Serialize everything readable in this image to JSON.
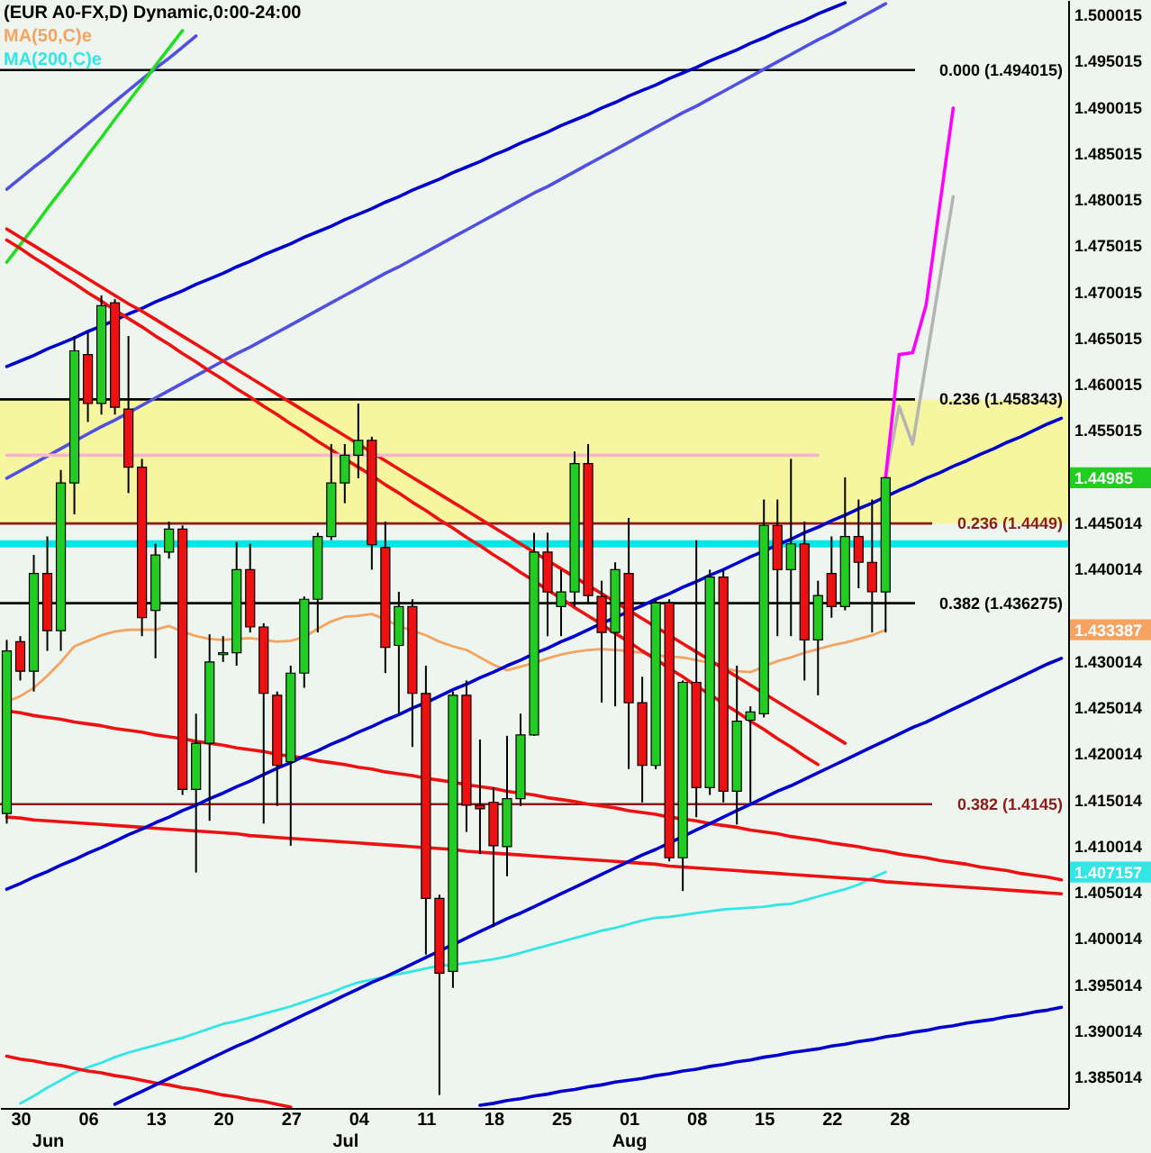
{
  "chart_data": {
    "type": "candlestick",
    "title": "(EUR A0-FX,D) Dynamic,0:00-24:00",
    "legend": "top left",
    "categories": [
      null,
      "30",
      null,
      "\nJun",
      null,
      null,
      "06",
      null,
      null,
      null,
      null,
      "13",
      null,
      null,
      null,
      null,
      "20",
      null,
      null,
      null,
      null,
      "27",
      null,
      null,
      null,
      "\nJul",
      "04",
      null,
      null,
      null,
      null,
      "11",
      null,
      null,
      null,
      null,
      "18",
      null,
      null,
      null,
      null,
      "25",
      null,
      null,
      null,
      null,
      "01\nAug",
      null,
      null,
      null,
      null,
      "08",
      null,
      null,
      null,
      null,
      "15",
      null,
      null,
      null,
      null,
      "22",
      null,
      null,
      null,
      null,
      "28",
      null,
      null,
      null,
      null,
      null,
      null,
      null,
      null,
      null,
      null,
      null,
      null
    ],
    "ohlc": [
      [
        1.4135,
        1.4323,
        1.4124,
        1.4311
      ],
      [
        1.4321,
        1.4327,
        1.4279,
        1.4289
      ],
      [
        1.4289,
        1.4415,
        1.4267,
        1.4395
      ],
      [
        1.4395,
        1.4435,
        1.4311,
        1.4333
      ],
      [
        1.4333,
        1.4507,
        1.4311,
        1.4493
      ],
      [
        1.4493,
        1.4652,
        1.4459,
        1.4636
      ],
      [
        1.4632,
        1.4656,
        1.4559,
        1.4579
      ],
      [
        1.4579,
        1.4696,
        1.4567,
        1.4685
      ],
      [
        1.4688,
        1.4692,
        1.4567,
        1.4575
      ],
      [
        1.4573,
        1.4652,
        1.4482,
        1.451
      ],
      [
        1.451,
        1.4519,
        1.4327,
        1.4347
      ],
      [
        1.4355,
        1.4427,
        1.4303,
        1.4415
      ],
      [
        1.4418,
        1.4451,
        1.4411,
        1.4443
      ],
      [
        1.4443,
        1.4447,
        1.4155,
        1.4161
      ],
      [
        1.4161,
        1.4243,
        1.4071,
        1.4211
      ],
      [
        1.4211,
        1.4329,
        1.4127,
        1.4299
      ],
      [
        1.4307,
        1.4327,
        1.4299,
        1.4309
      ],
      [
        1.4309,
        1.4429,
        1.4295,
        1.4399
      ],
      [
        1.4399,
        1.4427,
        1.4331,
        1.4337
      ],
      [
        1.4337,
        1.4341,
        1.4124,
        1.4265
      ],
      [
        1.4263,
        1.4267,
        1.4143,
        1.4187
      ],
      [
        1.4191,
        1.4295,
        1.41,
        1.4287
      ],
      [
        1.4287,
        1.437,
        1.4271,
        1.4367
      ],
      [
        1.4367,
        1.4439,
        1.4331,
        1.4435
      ],
      [
        1.4435,
        1.4535,
        1.4431,
        1.4493
      ],
      [
        1.4493,
        1.4535,
        1.4471,
        1.4523
      ],
      [
        1.4523,
        1.4579,
        1.4498,
        1.4539
      ],
      [
        1.4539,
        1.4543,
        1.4399,
        1.4426
      ],
      [
        1.4423,
        1.4451,
        1.4287,
        1.4315
      ],
      [
        1.4317,
        1.4375,
        1.4243,
        1.4359
      ],
      [
        1.4359,
        1.4367,
        1.4207,
        1.4265
      ],
      [
        1.4265,
        1.4295,
        1.3982,
        1.4043
      ],
      [
        1.4043,
        1.4047,
        1.383,
        1.3962
      ],
      [
        1.3964,
        1.4267,
        1.3946,
        1.4263
      ],
      [
        1.4263,
        1.4279,
        1.4115,
        1.4144
      ],
      [
        1.4144,
        1.4215,
        1.4091,
        1.414
      ],
      [
        1.4147,
        1.4163,
        1.4012,
        1.41
      ],
      [
        1.4099,
        1.4219,
        1.4067,
        1.4151
      ],
      [
        1.4151,
        1.4243,
        1.4143,
        1.422
      ],
      [
        1.422,
        1.4439,
        1.4219,
        1.4418
      ],
      [
        1.4418,
        1.4439,
        1.4327,
        1.4375
      ],
      [
        1.4359,
        1.4399,
        1.4327,
        1.4375
      ],
      [
        1.4375,
        1.4527,
        1.4359,
        1.4514
      ],
      [
        1.4514,
        1.4535,
        1.4363,
        1.4371
      ],
      [
        1.437,
        1.4387,
        1.4255,
        1.4331
      ],
      [
        1.4331,
        1.4407,
        1.4251,
        1.4399
      ],
      [
        1.4395,
        1.4455,
        1.4183,
        1.4255
      ],
      [
        1.4255,
        1.4283,
        1.4147,
        1.4187
      ],
      [
        1.4187,
        1.4367,
        1.4183,
        1.4363
      ],
      [
        1.4363,
        1.4367,
        1.4083,
        1.4087
      ],
      [
        1.4087,
        1.4279,
        1.4051,
        1.4277
      ],
      [
        1.4277,
        1.4431,
        1.4131,
        1.4163
      ],
      [
        1.4163,
        1.4399,
        1.4155,
        1.4391
      ],
      [
        1.4391,
        1.4399,
        1.4147,
        1.4159
      ],
      [
        1.4159,
        1.4295,
        1.4123,
        1.4235
      ],
      [
        1.4236,
        1.4251,
        1.4147,
        1.4245
      ],
      [
        1.4243,
        1.4475,
        1.4239,
        1.4447
      ],
      [
        1.4447,
        1.4475,
        1.4327,
        1.4399
      ],
      [
        1.4399,
        1.4519,
        1.4327,
        1.4427
      ],
      [
        1.4427,
        1.4451,
        1.4279,
        1.4323
      ],
      [
        1.4323,
        1.4387,
        1.4263,
        1.4371
      ],
      [
        1.4395,
        1.4435,
        1.4347,
        1.4359
      ],
      [
        1.4359,
        1.4499,
        1.4355,
        1.4435
      ],
      [
        1.4435,
        1.4475,
        1.4379,
        1.4407
      ],
      [
        1.4407,
        1.4475,
        1.4331,
        1.4375
      ],
      [
        1.4375,
        1.4499,
        1.4331,
        1.44985
      ],
      null,
      null,
      null,
      null,
      null,
      null,
      null,
      null,
      null,
      null,
      null,
      null,
      null
    ],
    "colors": [
      "#22cc22",
      "#ee1111",
      "#22cc22",
      "#ee1111",
      "#22cc22",
      "#22cc22",
      "#ee1111",
      "#22cc22",
      "#ee1111",
      "#ee1111",
      "#ee1111",
      "#22cc22",
      "#22cc22",
      "#ee1111",
      "#22cc22",
      "#22cc22",
      "#22cc22",
      "#22cc22",
      "#ee1111",
      "#ee1111",
      "#ee1111",
      "#22cc22",
      "#22cc22",
      "#22cc22",
      "#22cc22",
      "#22cc22",
      "#22cc22",
      "#ee1111",
      "#ee1111",
      "#22cc22",
      "#ee1111",
      "#ee1111",
      "#ee1111",
      "#22cc22",
      "#ee1111",
      "#ee1111",
      "#ee1111",
      "#22cc22",
      "#22cc22",
      "#22cc22",
      "#ee1111",
      "#22cc22",
      "#22cc22",
      "#ee1111",
      "#ee1111",
      "#22cc22",
      "#ee1111",
      "#ee1111",
      "#22cc22",
      "#ee1111",
      "#22cc22",
      "#ee1111",
      "#22cc22",
      "#ee1111",
      "#22cc22",
      "#22cc22",
      "#22cc22",
      "#ee1111",
      "#22cc22",
      "#ee1111",
      "#22cc22",
      "#ee1111",
      "#22cc22",
      "#ee1111",
      "#ee1111",
      "#22cc22",
      null,
      null,
      null,
      null,
      null,
      null,
      null,
      null,
      null,
      null,
      null,
      null,
      null
    ],
    "series": [
      {
        "type": "line",
        "name": "MA(50,C)e",
        "color": "#f4a460",
        "values": [
          1.4256,
          1.4262,
          1.4271,
          1.4284,
          1.4299,
          1.4316,
          1.4322,
          1.4328,
          1.4332,
          1.4334,
          1.4334,
          1.4334,
          1.4338,
          1.4332,
          1.4327,
          1.4324,
          1.4323,
          1.4324,
          1.4325,
          1.4323,
          1.4321,
          1.4322,
          1.4326,
          1.4335,
          1.4343,
          1.4348,
          1.4349,
          1.4351,
          1.4345,
          1.4338,
          1.4333,
          1.4328,
          1.4321,
          1.4316,
          1.4312,
          1.4304,
          1.4296,
          1.429,
          1.4294,
          1.4298,
          1.4303,
          1.4307,
          1.431,
          1.4312,
          1.4313,
          1.4312,
          1.4311,
          1.4309,
          1.4306,
          1.4305,
          1.4304,
          1.4301,
          1.4298,
          1.4293,
          1.4289,
          1.4288,
          1.4294,
          1.43,
          1.4304,
          1.4309,
          1.4313,
          1.4317,
          1.432,
          1.4324,
          1.4328,
          1.433387,
          null,
          null,
          null,
          null,
          null,
          null,
          null,
          null,
          null,
          null,
          null,
          null,
          null
        ]
      },
      {
        "type": "line",
        "name": "MA(200,C)e",
        "color": "#33e6e6",
        "values": [
          null,
          1.3821,
          1.3829,
          1.3838,
          1.3846,
          1.3854,
          1.386,
          1.3865,
          1.3871,
          1.3876,
          1.388,
          1.3884,
          1.3888,
          1.3892,
          1.3897,
          1.3902,
          1.3907,
          1.391,
          1.3914,
          1.3918,
          1.3922,
          1.3926,
          1.3931,
          1.3936,
          1.3941,
          1.3947,
          1.3952,
          1.3955,
          1.3958,
          1.3961,
          1.3964,
          1.3967,
          1.397,
          1.3971,
          1.3973,
          1.3975,
          1.3977,
          1.398,
          1.3984,
          1.3988,
          1.3992,
          1.3996,
          1.4,
          1.4004,
          1.4008,
          1.4011,
          1.4015,
          1.4019,
          1.4022,
          1.4023,
          1.4025,
          1.4027,
          1.4029,
          1.4031,
          1.4032,
          1.4033,
          1.4034,
          1.4036,
          1.4037,
          1.4041,
          1.4045,
          1.4049,
          1.4053,
          1.4058,
          1.4065,
          1.407157,
          null,
          null,
          null,
          null,
          null,
          null,
          null,
          null,
          null,
          null,
          null,
          null,
          null
        ]
      },
      {
        "type": "line",
        "color": "#0000cc",
        "values": [
          1.4619,
          1.4625,
          1.4631,
          1.4638,
          1.4644,
          1.465,
          1.4657,
          1.4663,
          1.4669,
          1.4676,
          1.4682,
          1.4689,
          1.4695,
          1.4701,
          1.4708,
          1.4714,
          1.472,
          1.4727,
          1.4733,
          1.474,
          1.4746,
          1.4752,
          1.4759,
          1.4765,
          1.4771,
          1.4778,
          1.4784,
          1.479,
          1.4797,
          1.4803,
          1.481,
          1.4816,
          1.4822,
          1.4829,
          1.4835,
          1.4841,
          1.4848,
          1.4854,
          1.4861,
          1.4867,
          1.4873,
          1.488,
          1.4886,
          1.4892,
          1.4899,
          1.4905,
          1.4912,
          1.4918,
          1.4924,
          1.4931,
          1.4937,
          1.4943,
          1.495,
          1.4956,
          1.4962,
          1.4969,
          1.4975,
          1.4982,
          1.4988,
          1.4994,
          1.5001,
          1.5007,
          1.5013,
          null,
          null,
          null,
          null,
          null,
          null,
          null,
          null,
          null,
          null,
          null,
          null,
          null,
          null,
          null,
          null
        ]
      },
      {
        "type": "line",
        "color": "#5050e0",
        "values": [
          1.4498,
          1.4506,
          1.4514,
          1.4522,
          1.453,
          1.4538,
          1.4546,
          1.4554,
          1.4561,
          1.4569,
          1.4577,
          1.4585,
          1.4593,
          1.4601,
          1.4609,
          1.4617,
          1.4625,
          1.4633,
          1.464,
          1.4648,
          1.4656,
          1.4664,
          1.4672,
          1.468,
          1.4688,
          1.4696,
          1.4704,
          1.4712,
          1.472,
          1.4727,
          1.4735,
          1.4743,
          1.4751,
          1.4759,
          1.4767,
          1.4775,
          1.4783,
          1.4791,
          1.4799,
          1.4807,
          1.4814,
          1.4822,
          1.483,
          1.4838,
          1.4846,
          1.4854,
          1.4862,
          1.487,
          1.4878,
          1.4886,
          1.4894,
          1.4901,
          1.4909,
          1.4917,
          1.4925,
          1.4933,
          1.4941,
          1.4949,
          1.4957,
          1.4965,
          1.4973,
          1.498,
          1.4988,
          1.4996,
          1.5004,
          1.5012,
          null,
          null,
          null,
          null,
          null,
          null,
          null,
          null,
          null,
          null,
          null,
          null,
          null
        ]
      },
      {
        "type": "line",
        "color": "#5050e0",
        "values": [
          1.4811,
          1.4823,
          1.4835,
          1.4846,
          1.4858,
          1.487,
          1.4882,
          1.4894,
          1.4906,
          1.4918,
          1.493,
          1.4942,
          1.4953,
          1.4965,
          1.4977,
          null,
          null,
          null,
          null,
          null,
          null,
          null,
          null,
          null,
          null,
          null,
          null,
          null,
          null,
          null,
          null,
          null,
          null,
          null,
          null,
          null,
          null,
          null,
          null,
          null,
          null,
          null,
          null,
          null,
          null,
          null,
          null,
          null,
          null,
          null,
          null,
          null,
          null,
          null,
          null,
          null,
          null,
          null,
          null,
          null,
          null,
          null,
          null,
          null,
          null,
          null,
          null,
          null,
          null,
          null,
          null,
          null,
          null,
          null,
          null,
          null,
          null,
          null,
          null
        ]
      },
      {
        "type": "line",
        "color": "#22dd22",
        "values": [
          1.4732,
          1.4751,
          1.477,
          1.479,
          1.4809,
          1.4828,
          1.4848,
          1.4867,
          1.4887,
          1.4906,
          1.4925,
          1.4945,
          1.4964,
          1.4983,
          null,
          null,
          null,
          null,
          null,
          null,
          null,
          null,
          null,
          null,
          null,
          null,
          null,
          null,
          null,
          null,
          null,
          null,
          null,
          null,
          null,
          null,
          null,
          null,
          null,
          null,
          null,
          null,
          null,
          null,
          null,
          null,
          null,
          null,
          null,
          null,
          null,
          null,
          null,
          null,
          null,
          null,
          null,
          null,
          null,
          null,
          null,
          null,
          null,
          null,
          null,
          null,
          null,
          null,
          null,
          null,
          null,
          null,
          null,
          null,
          null,
          null,
          null,
          null,
          null
        ]
      },
      {
        "type": "line",
        "color": "#ee1111",
        "values": [
          1.4768,
          1.4759,
          1.475,
          1.4741,
          1.4732,
          1.4723,
          1.4714,
          1.4705,
          1.4696,
          1.4687,
          1.4679,
          1.467,
          1.4661,
          1.4652,
          1.4643,
          1.4634,
          1.4625,
          1.4616,
          1.4607,
          1.4598,
          1.4589,
          1.458,
          1.4571,
          1.4562,
          1.4553,
          1.4544,
          1.4535,
          1.4526,
          1.4517,
          1.4508,
          1.4499,
          1.449,
          1.4481,
          1.4472,
          1.4463,
          1.4454,
          1.4445,
          1.4436,
          1.4427,
          1.4418,
          1.4409,
          1.44,
          1.4391,
          1.4382,
          1.4373,
          1.4364,
          1.4355,
          1.4346,
          1.4337,
          1.4328,
          1.4319,
          1.431,
          1.4301,
          1.4292,
          1.4283,
          1.4274,
          1.4265,
          1.4256,
          1.4247,
          1.4238,
          1.4229,
          1.422,
          1.4211,
          null,
          null,
          null,
          null,
          null,
          null,
          null,
          null,
          null,
          null,
          null,
          null,
          null,
          null,
          null,
          null
        ]
      },
      {
        "type": "line",
        "color": "#ee1111",
        "values": [
          1.4756,
          1.4747,
          1.4737,
          1.4728,
          1.4718,
          1.4709,
          1.4699,
          1.469,
          1.468,
          1.4671,
          1.4662,
          1.4652,
          1.4643,
          1.4633,
          1.4624,
          1.4614,
          1.4605,
          1.4595,
          1.4586,
          1.4576,
          1.4567,
          1.4557,
          1.4548,
          1.4538,
          1.4529,
          1.4519,
          1.451,
          1.4501,
          1.4491,
          1.4482,
          1.4472,
          1.4463,
          1.4453,
          1.4444,
          1.4434,
          1.4425,
          1.4415,
          1.4406,
          1.4396,
          1.4387,
          1.4377,
          1.4368,
          1.4358,
          1.4349,
          1.434,
          1.433,
          1.4321,
          1.4311,
          1.4302,
          1.4292,
          1.4283,
          1.4273,
          1.4264,
          1.4254,
          1.4245,
          1.4235,
          1.4226,
          1.4216,
          1.4207,
          1.4197,
          1.4188,
          null,
          null,
          null,
          null,
          null,
          null,
          null,
          null,
          null,
          null,
          null,
          null,
          null,
          null,
          null,
          null,
          null,
          null
        ]
      },
      {
        "type": "line",
        "color": "#ee1111",
        "values": [
          1.4246,
          1.4244,
          1.4241,
          1.4239,
          1.4237,
          1.4234,
          1.4232,
          1.423,
          1.4227,
          1.4225,
          1.4223,
          1.422,
          1.4218,
          1.4216,
          1.4213,
          1.4211,
          1.4209,
          1.4206,
          1.4204,
          1.4202,
          1.4199,
          1.4197,
          1.4195,
          1.4192,
          1.419,
          1.4188,
          1.4185,
          1.4183,
          1.418,
          1.4178,
          1.4176,
          1.4173,
          1.4171,
          1.4169,
          1.4166,
          1.4164,
          1.4162,
          1.4159,
          1.4157,
          1.4155,
          1.4152,
          1.415,
          1.4148,
          1.4145,
          1.4143,
          1.4141,
          1.4138,
          1.4136,
          1.4134,
          1.4131,
          1.4129,
          1.4127,
          1.4124,
          1.4122,
          1.412,
          1.4117,
          1.4115,
          1.4113,
          1.411,
          1.4108,
          1.4106,
          1.4103,
          1.4101,
          1.4099,
          1.4096,
          1.4094,
          1.4091,
          1.4089,
          1.4087,
          1.4084,
          1.4082,
          1.408,
          1.4077,
          1.4075,
          1.4073,
          1.407,
          1.4068,
          1.4066,
          1.4063
        ]
      },
      {
        "type": "line",
        "color": "#ee1111",
        "values": [
          1.4131,
          1.413,
          1.4128,
          1.4127,
          1.4126,
          1.4125,
          1.4124,
          1.4123,
          1.4122,
          1.4121,
          1.412,
          1.4119,
          1.4118,
          1.4117,
          1.4116,
          1.4115,
          1.4114,
          1.4113,
          1.4111,
          1.411,
          1.4109,
          1.4108,
          1.4107,
          1.4106,
          1.4105,
          1.4104,
          1.4103,
          1.4102,
          1.4101,
          1.41,
          1.4099,
          1.4098,
          1.4097,
          1.4096,
          1.4094,
          1.4093,
          1.4092,
          1.4091,
          1.409,
          1.4089,
          1.4088,
          1.4087,
          1.4086,
          1.4085,
          1.4084,
          1.4083,
          1.4082,
          1.4081,
          1.408,
          1.4078,
          1.4077,
          1.4076,
          1.4075,
          1.4074,
          1.4073,
          1.4072,
          1.4071,
          1.407,
          1.4069,
          1.4068,
          1.4067,
          1.4066,
          1.4065,
          1.4064,
          1.4063,
          1.4061,
          1.406,
          1.4059,
          1.4058,
          1.4057,
          1.4056,
          1.4055,
          1.4054,
          1.4053,
          1.4052,
          1.4051,
          1.405,
          1.4049,
          1.4048
        ]
      },
      {
        "type": "line",
        "color": "#ee1111",
        "values": [
          1.3872,
          1.3869,
          1.3867,
          1.3864,
          1.3862,
          1.3859,
          1.3856,
          1.3854,
          1.3851,
          1.3849,
          1.3846,
          1.3843,
          1.3841,
          1.3838,
          1.3836,
          1.3833,
          1.383,
          1.3828,
          1.3825,
          1.3823,
          1.382,
          1.3817,
          null,
          null,
          null,
          null,
          null,
          null,
          null,
          null,
          null,
          null,
          null,
          null,
          null,
          null,
          null,
          null,
          null,
          null,
          null,
          null,
          null,
          null,
          null,
          null,
          null,
          null,
          null,
          null,
          null,
          null,
          null,
          null,
          null,
          null,
          null,
          null,
          null,
          null,
          null,
          null,
          null,
          null,
          null,
          null,
          null,
          null,
          null,
          null,
          null,
          null,
          null,
          null,
          null,
          null,
          null,
          null,
          null
        ]
      },
      {
        "type": "line",
        "color": "#0000cc",
        "values": [
          1.4053,
          1.4059,
          1.4066,
          1.4072,
          1.4079,
          1.4085,
          1.4092,
          1.4098,
          1.4105,
          1.4112,
          1.4118,
          1.4125,
          1.4131,
          1.4138,
          1.4144,
          1.4151,
          1.4157,
          1.4164,
          1.417,
          1.4177,
          1.4184,
          1.419,
          1.4197,
          1.4203,
          1.421,
          1.4216,
          1.4223,
          1.4229,
          1.4236,
          1.4242,
          1.4249,
          1.4255,
          1.4262,
          1.4269,
          1.4275,
          1.4282,
          1.4288,
          1.4295,
          1.4301,
          1.4308,
          1.4314,
          1.4321,
          1.4327,
          1.4334,
          1.4341,
          1.4347,
          1.4354,
          1.436,
          1.4367,
          1.4373,
          1.438,
          1.4386,
          1.4393,
          1.4399,
          1.4406,
          1.4413,
          1.4419,
          1.4426,
          1.4432,
          1.4439,
          1.4445,
          1.4452,
          1.4458,
          1.4465,
          1.4471,
          1.4478,
          1.4485,
          1.4491,
          1.4498,
          1.4504,
          1.4511,
          1.4517,
          1.4524,
          1.453,
          1.4537,
          1.4543,
          1.455,
          1.4557,
          1.4563
        ]
      },
      {
        "type": "line",
        "color": "#0000cc",
        "values": [
          null,
          null,
          null,
          null,
          null,
          null,
          null,
          null,
          1.382,
          1.3827,
          1.3834,
          1.3841,
          1.3848,
          1.3855,
          1.3862,
          1.3869,
          1.3876,
          1.3883,
          1.3889,
          1.3896,
          1.3903,
          1.391,
          1.3917,
          1.3924,
          1.3931,
          1.3938,
          1.3945,
          1.3952,
          1.3958,
          1.3965,
          1.3972,
          1.3979,
          1.3986,
          1.3993,
          1.4,
          1.4007,
          1.4014,
          1.4021,
          1.4027,
          1.4034,
          1.4041,
          1.4048,
          1.4055,
          1.4062,
          1.4069,
          1.4076,
          1.4083,
          1.409,
          1.4096,
          1.4103,
          1.411,
          1.4117,
          1.4124,
          1.4131,
          1.4138,
          1.4145,
          1.4152,
          1.4159,
          1.4165,
          1.4172,
          1.4179,
          1.4186,
          1.4193,
          1.42,
          1.4207,
          1.4214,
          1.4221,
          1.4228,
          1.4234,
          1.4241,
          1.4248,
          1.4255,
          1.4262,
          1.4269,
          1.4276,
          1.4283,
          1.429,
          1.4297,
          1.4303
        ]
      },
      {
        "type": "line",
        "color": "#0000cc",
        "values": [
          null,
          null,
          null,
          null,
          null,
          null,
          null,
          null,
          null,
          null,
          null,
          null,
          null,
          null,
          null,
          null,
          null,
          null,
          null,
          null,
          null,
          null,
          null,
          null,
          null,
          null,
          null,
          null,
          null,
          null,
          null,
          null,
          null,
          null,
          null,
          1.3819,
          1.3821,
          1.3824,
          1.3826,
          1.3829,
          1.3831,
          1.3834,
          1.3836,
          1.3839,
          1.3841,
          1.3844,
          1.3846,
          1.3848,
          1.3851,
          1.3853,
          1.3856,
          1.3858,
          1.3861,
          1.3863,
          1.3866,
          1.3868,
          1.3871,
          1.3873,
          1.3876,
          1.3878,
          1.388,
          1.3883,
          1.3885,
          1.3888,
          1.389,
          1.3893,
          1.3895,
          1.3898,
          1.39,
          1.3903,
          1.3905,
          1.3908,
          1.391,
          1.3912,
          1.3915,
          1.3917,
          1.392,
          1.3922,
          1.3925
        ]
      },
      {
        "type": "line",
        "color": "#f4b8c8",
        "values": [
          1.4523,
          1.4523,
          1.4523,
          1.4523,
          1.4523,
          1.4523,
          1.4523,
          1.4523,
          1.4523,
          1.4523,
          1.4523,
          1.4523,
          1.4523,
          1.4523,
          1.4523,
          1.4523,
          1.4523,
          1.4523,
          1.4523,
          1.4523,
          1.4523,
          1.4523,
          1.4523,
          1.4523,
          1.4523,
          1.4523,
          1.4523,
          1.4523,
          1.4523,
          1.4523,
          1.4523,
          1.4523,
          1.4523,
          1.4523,
          1.4523,
          1.4523,
          1.4523,
          1.4523,
          1.4523,
          1.4523,
          1.4523,
          1.4523,
          1.4523,
          1.4523,
          1.4523,
          1.4523,
          1.4523,
          1.4523,
          1.4523,
          1.4523,
          1.4523,
          1.4523,
          1.4523,
          1.4523,
          1.4523,
          1.4523,
          1.4523,
          1.4523,
          1.4523,
          1.4523,
          1.4523,
          null,
          null,
          null,
          null,
          null,
          null,
          null,
          null,
          null,
          null,
          null,
          null,
          null,
          null,
          null,
          null,
          null,
          null
        ]
      },
      {
        "type": "line",
        "color": "#b4b4b4",
        "values": [
          null,
          null,
          null,
          null,
          null,
          null,
          null,
          null,
          null,
          null,
          null,
          null,
          null,
          null,
          null,
          null,
          null,
          null,
          null,
          null,
          null,
          null,
          null,
          null,
          null,
          null,
          null,
          null,
          null,
          null,
          null,
          null,
          null,
          null,
          null,
          null,
          null,
          null,
          null,
          null,
          null,
          null,
          null,
          null,
          null,
          null,
          null,
          null,
          null,
          null,
          null,
          null,
          null,
          null,
          null,
          null,
          null,
          null,
          null,
          null,
          null,
          null,
          null,
          null,
          null,
          1.4499,
          1.4576,
          1.4535,
          1.4624,
          1.4714,
          1.4803,
          null,
          null,
          null,
          null,
          null,
          null,
          null,
          null
        ]
      },
      {
        "type": "line",
        "color": "#ff00ff",
        "values": [
          null,
          null,
          null,
          null,
          null,
          null,
          null,
          null,
          null,
          null,
          null,
          null,
          null,
          null,
          null,
          null,
          null,
          null,
          null,
          null,
          null,
          null,
          null,
          null,
          null,
          null,
          null,
          null,
          null,
          null,
          null,
          null,
          null,
          null,
          null,
          null,
          null,
          null,
          null,
          null,
          null,
          null,
          null,
          null,
          null,
          null,
          null,
          null,
          null,
          null,
          null,
          null,
          null,
          null,
          null,
          null,
          null,
          null,
          null,
          null,
          null,
          null,
          null,
          null,
          null,
          1.4499,
          1.4632,
          1.4634,
          1.4686,
          1.4793,
          1.4899,
          null,
          null,
          null,
          null,
          null,
          null,
          null,
          null
        ]
      }
    ],
    "ref_lines": [
      {
        "axis": "y",
        "value": 1.494015,
        "label": "0.000 (1.494015)",
        "color": "#000000"
      },
      {
        "axis": "y",
        "value": 1.458343,
        "label": "0.236 (1.458343)",
        "color": "#000000"
      },
      {
        "axis": "y",
        "value": 1.4449,
        "label": "0.236 (1.4449)",
        "color": "#8b1a1a"
      },
      {
        "axis": "y",
        "value": 1.436275,
        "label": "0.382 (1.436275)",
        "color": "#000000"
      },
      {
        "axis": "y",
        "value": 1.4145,
        "label": "0.382 (1.4145)",
        "color": "#8b1a1a"
      },
      {
        "axis": "y",
        "value": 1.4427,
        "color": "#00e8e8"
      }
    ],
    "bands": [
      {
        "axis": "y",
        "from": 1.4449,
        "to": 1.458343,
        "color": "#f6f6a0"
      }
    ],
    "ylim": [
      1.3816,
      1.5016
    ],
    "yticks": [
      1.500015,
      1.495015,
      1.490015,
      1.485015,
      1.480015,
      1.475015,
      1.470015,
      1.465015,
      1.460015,
      1.455015,
      1.44985,
      1.445014,
      1.440014,
      1.433387,
      1.430014,
      1.425014,
      1.420014,
      1.415014,
      1.410014,
      1.407157,
      1.405014,
      1.400014,
      1.395014,
      1.390014,
      1.385014
    ]
  }
}
